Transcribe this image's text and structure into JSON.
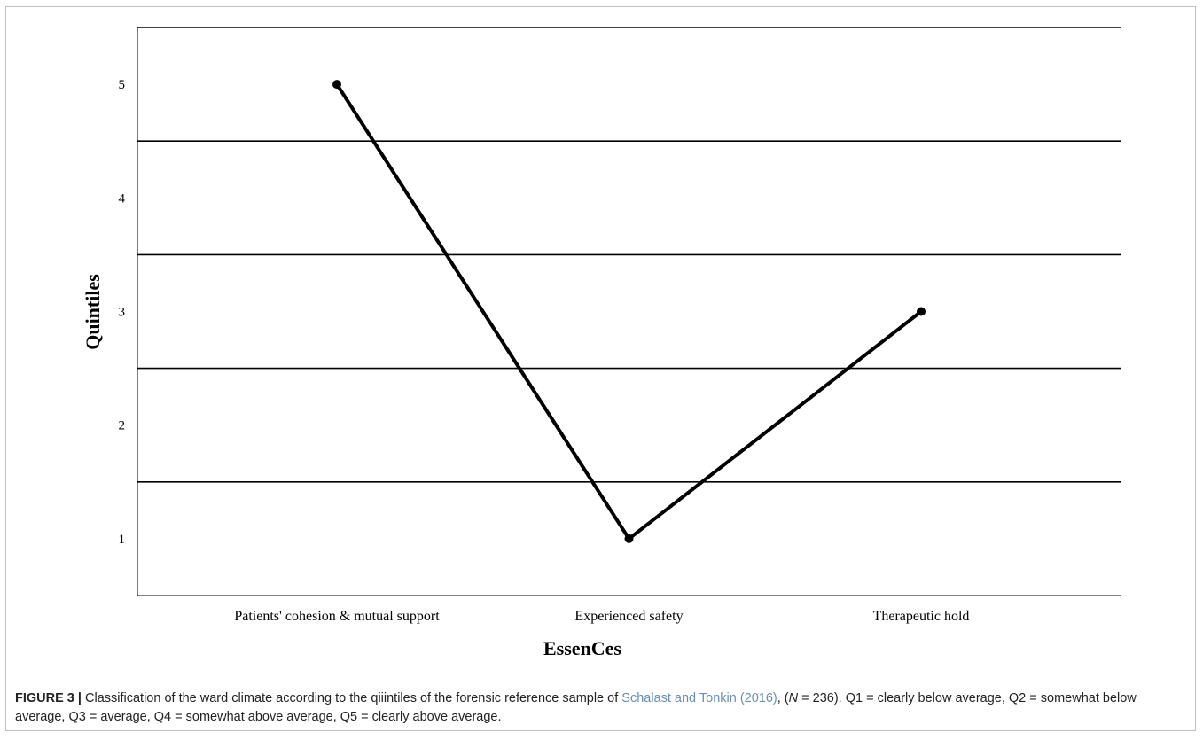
{
  "chart_data": {
    "type": "line",
    "categories": [
      "Patients' cohesion & mutual support",
      "Experienced safety",
      "Therapeutic hold"
    ],
    "values": [
      5,
      1,
      3
    ],
    "yticks": [
      "1",
      "2",
      "3",
      "4",
      "5"
    ],
    "ylim": [
      0.5,
      5.5
    ],
    "gridlines": [
      1.5,
      2.5,
      3.5,
      4.5,
      5.5
    ],
    "xlabel": "EssenCes",
    "ylabel": "Quintiles",
    "line_color": "#000000",
    "grid": true,
    "legend": "none"
  },
  "caption": {
    "label": "FIGURE 3 |",
    "text_before": " Classification of the ward climate according to the qiiintiles of the forensic reference sample of ",
    "reference": "Schalast and Tonkin (2016)",
    "text_mid": ", (",
    "n_symbol": "N",
    "text_after": " = 236). Q1 = clearly below average, Q2 = somewhat below average, Q3 = average, Q4 = somewhat above average, Q5 = clearly above average."
  }
}
